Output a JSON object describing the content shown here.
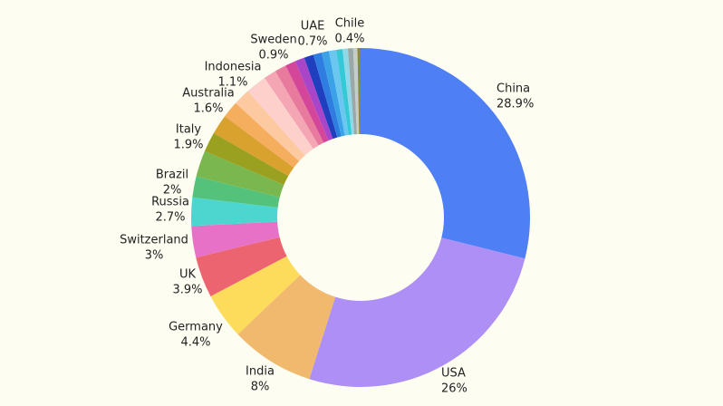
{
  "chart_data": {
    "type": "pie",
    "categories": [
      "China",
      "USA",
      "India",
      "Germany",
      "UK",
      "Switzerland",
      "Russia",
      "Brazil",
      null,
      "Italy",
      null,
      null,
      "Australia",
      null,
      null,
      "Indonesia",
      null,
      null,
      "Sweden",
      null,
      "UAE",
      null,
      null,
      null,
      null,
      "Chile",
      null
    ],
    "values": [
      28.9,
      26,
      8,
      4.4,
      3.9,
      3,
      2.7,
      2,
      2.5,
      1.9,
      1.9,
      1.6,
      1.6,
      2.0,
      1.2,
      1.1,
      1.0,
      0.9,
      0.9,
      0.8,
      0.7,
      0.7,
      0.6,
      0.5,
      0.5,
      0.4,
      0.3
    ],
    "value_labels": [
      "28.9%",
      "26%",
      "8%",
      "4.4%",
      "3.9%",
      "3%",
      "2.7%",
      "2%",
      null,
      "1.9%",
      null,
      null,
      "1.6%",
      null,
      null,
      "1.1%",
      null,
      null,
      "0.9%",
      null,
      "0.7%",
      null,
      null,
      null,
      null,
      "0.4%",
      null
    ],
    "colors": [
      "#4f7ff5",
      "#ae8ff5",
      "#f0b96e",
      "#fcdc5a",
      "#ec6470",
      "#e871c8",
      "#4dd6d0",
      "#55c27c",
      "#7ab84f",
      "#9aa020",
      "#d9a22e",
      "#f5ad5e",
      "#fcc9a0",
      "#fdd0cc",
      "#f5a6b5",
      "#e87a9e",
      "#d4469a",
      "#a845c9",
      "#1f3fbf",
      "#2f7de0",
      "#3ba2e8",
      "#6cc7f0",
      "#35c9d8",
      "#8fd8e8",
      "#9aa9a8",
      "#c2cfc8",
      "#8b8a3a"
    ],
    "donut": true
  }
}
